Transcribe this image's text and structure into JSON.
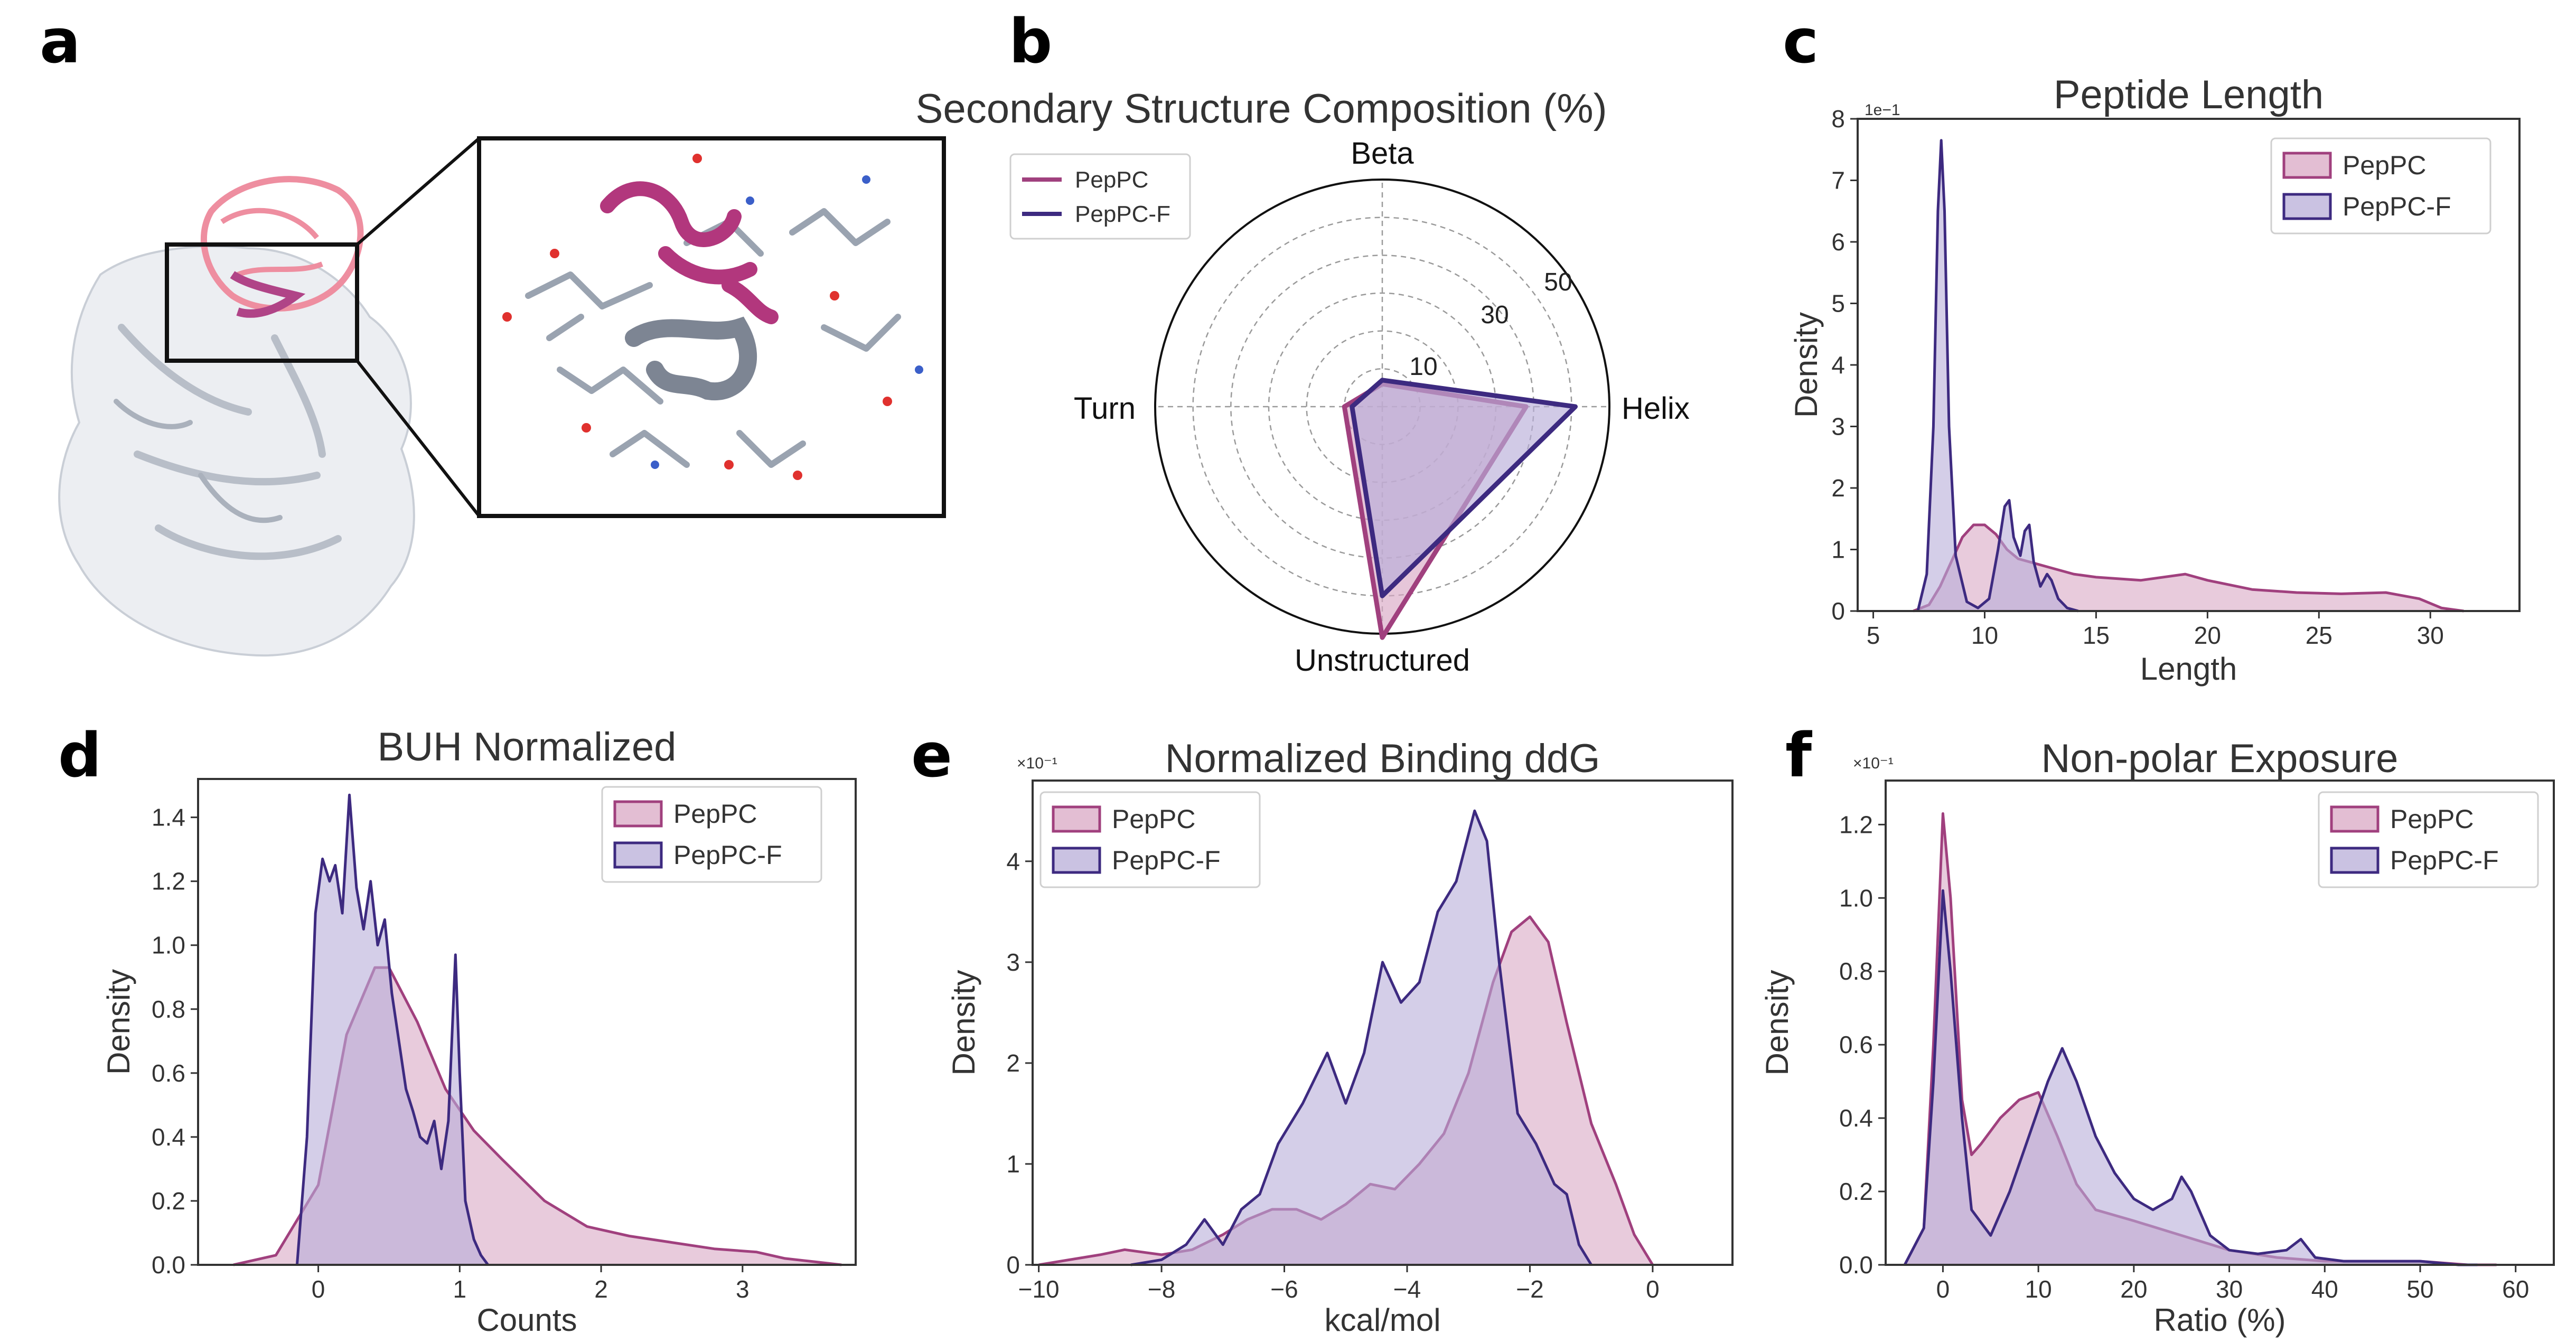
{
  "colors": {
    "pep": "#a0407e",
    "pepFill": "#d9a8c4",
    "pepf": "#3d2a80",
    "pepfFill": "#b8aed8",
    "axis": "#333333"
  },
  "panels": {
    "a": "a",
    "b": "b",
    "c": "c",
    "d": "d",
    "e": "e",
    "f": "f"
  },
  "legend": {
    "pep": "PepPC",
    "pepf": "PepPC-F"
  },
  "chart_data": [
    {
      "id": "b",
      "type": "radar",
      "title": "Secondary Structure Composition (%)",
      "axes": [
        "Helix",
        "Beta",
        "Turn",
        "Unstructured"
      ],
      "rticks": [
        10,
        30,
        50
      ],
      "rmax": 60,
      "grid_rings": [
        10,
        20,
        30,
        40,
        50,
        60
      ],
      "series": [
        {
          "name": "PepPC",
          "values": [
            38,
            6,
            10,
            61
          ]
        },
        {
          "name": "PepPC-F",
          "values": [
            51,
            7,
            8,
            50
          ]
        }
      ]
    },
    {
      "id": "c",
      "type": "area",
      "title": "Peptide Length",
      "xlabel": "Length",
      "ylabel": "Density",
      "xlim": [
        4.3,
        34
      ],
      "ylim": [
        0,
        8
      ],
      "multiplier": "1e−1",
      "xticks": [
        5,
        10,
        15,
        20,
        25,
        30
      ],
      "yticks": [
        0,
        1,
        2,
        3,
        4,
        5,
        6,
        7,
        8
      ],
      "series": [
        {
          "name": "PepPC",
          "x": [
            6.8,
            7.5,
            8.0,
            8.5,
            9.0,
            9.5,
            10.0,
            10.5,
            11.0,
            11.5,
            12.0,
            13.0,
            14.0,
            15.0,
            17.0,
            19.0,
            20.0,
            22.0,
            24.0,
            26.0,
            28.0,
            29.5,
            30.5,
            31.5
          ],
          "y": [
            0,
            0.1,
            0.4,
            0.8,
            1.2,
            1.4,
            1.4,
            1.25,
            1.0,
            0.85,
            0.8,
            0.7,
            0.6,
            0.55,
            0.5,
            0.6,
            0.5,
            0.35,
            0.3,
            0.28,
            0.3,
            0.2,
            0.05,
            0
          ]
        },
        {
          "name": "PepPC-F",
          "x": [
            7.0,
            7.4,
            7.7,
            7.9,
            8.05,
            8.2,
            8.4,
            8.7,
            9.2,
            9.7,
            10.2,
            10.6,
            10.9,
            11.1,
            11.3,
            11.6,
            11.8,
            12.0,
            12.2,
            12.5,
            12.8,
            13.0,
            13.3,
            13.7,
            14.2
          ],
          "y": [
            0,
            0.6,
            3.0,
            6.5,
            7.65,
            6.5,
            3.0,
            0.9,
            0.15,
            0.05,
            0.2,
            1.0,
            1.7,
            1.8,
            1.2,
            0.9,
            1.3,
            1.4,
            0.8,
            0.4,
            0.6,
            0.5,
            0.2,
            0.05,
            0
          ]
        }
      ]
    },
    {
      "id": "d",
      "type": "area",
      "title": "BUH Normalized",
      "xlabel": "Counts",
      "ylabel": "Density",
      "xlim": [
        -0.85,
        3.8
      ],
      "ylim": [
        0,
        1.52
      ],
      "xticks": [
        0,
        1,
        2,
        3
      ],
      "yticks": [
        0.0,
        0.2,
        0.4,
        0.6,
        0.8,
        1.0,
        1.2,
        1.4
      ],
      "series": [
        {
          "name": "PepPC",
          "x": [
            -0.6,
            -0.3,
            0,
            0.2,
            0.4,
            0.5,
            0.7,
            0.9,
            1.1,
            1.3,
            1.6,
            1.9,
            2.2,
            2.5,
            2.8,
            3.1,
            3.3,
            3.5,
            3.7
          ],
          "y": [
            0,
            0.03,
            0.25,
            0.72,
            0.93,
            0.93,
            0.76,
            0.55,
            0.42,
            0.33,
            0.2,
            0.12,
            0.09,
            0.07,
            0.05,
            0.04,
            0.02,
            0.01,
            0
          ]
        },
        {
          "name": "PepPC-F",
          "x": [
            -0.15,
            -0.08,
            -0.02,
            0.03,
            0.08,
            0.12,
            0.17,
            0.22,
            0.27,
            0.32,
            0.37,
            0.42,
            0.47,
            0.52,
            0.57,
            0.62,
            0.67,
            0.72,
            0.77,
            0.82,
            0.87,
            0.92,
            0.97,
            1.0,
            1.04,
            1.1,
            1.15,
            1.2
          ],
          "y": [
            0,
            0.4,
            1.1,
            1.27,
            1.2,
            1.25,
            1.1,
            1.47,
            1.18,
            1.05,
            1.2,
            1.0,
            1.08,
            0.85,
            0.7,
            0.55,
            0.48,
            0.4,
            0.38,
            0.45,
            0.3,
            0.45,
            0.97,
            0.6,
            0.2,
            0.08,
            0.03,
            0
          ]
        }
      ]
    },
    {
      "id": "e",
      "type": "area",
      "title": "Normalized Binding ddG",
      "xlabel": "kcal/mol",
      "ylabel": "Density",
      "xlim": [
        -10.1,
        1.3
      ],
      "ylim": [
        0,
        4.8
      ],
      "multiplier": "×10⁻¹",
      "xticks": [
        -10,
        -8,
        -6,
        -4,
        -2,
        0
      ],
      "yticks": [
        0,
        1,
        2,
        3,
        4
      ],
      "series": [
        {
          "name": "PepPC",
          "x": [
            -10,
            -9.5,
            -9,
            -8.6,
            -8,
            -7.5,
            -7,
            -6.6,
            -6.2,
            -5.8,
            -5.4,
            -5,
            -4.6,
            -4.2,
            -3.8,
            -3.4,
            -3,
            -2.6,
            -2.3,
            -2.0,
            -1.7,
            -1.4,
            -1.0,
            -0.6,
            -0.3,
            0
          ],
          "y": [
            0,
            0.05,
            0.1,
            0.15,
            0.1,
            0.15,
            0.3,
            0.45,
            0.55,
            0.55,
            0.45,
            0.6,
            0.8,
            0.75,
            1.0,
            1.3,
            1.9,
            2.8,
            3.3,
            3.45,
            3.2,
            2.4,
            1.4,
            0.8,
            0.3,
            0
          ]
        },
        {
          "name": "PepPC-F",
          "x": [
            -8.5,
            -8,
            -7.6,
            -7.3,
            -7.0,
            -6.7,
            -6.4,
            -6.1,
            -5.7,
            -5.3,
            -5.0,
            -4.7,
            -4.4,
            -4.1,
            -3.8,
            -3.5,
            -3.2,
            -2.9,
            -2.7,
            -2.5,
            -2.2,
            -1.9,
            -1.6,
            -1.4,
            -1.2,
            -1.0
          ],
          "y": [
            0,
            0.05,
            0.2,
            0.45,
            0.2,
            0.55,
            0.7,
            1.2,
            1.6,
            2.1,
            1.6,
            2.1,
            3.0,
            2.6,
            2.8,
            3.5,
            3.8,
            4.5,
            4.2,
            3.0,
            1.5,
            1.2,
            0.8,
            0.7,
            0.2,
            0
          ]
        }
      ]
    },
    {
      "id": "f",
      "type": "area",
      "title": "Non-polar Exposure",
      "xlabel": "Ratio (%)",
      "ylabel": "Density",
      "xlim": [
        -6,
        64
      ],
      "ylim": [
        0,
        1.32
      ],
      "multiplier": "×10⁻¹",
      "xticks": [
        0,
        10,
        20,
        30,
        40,
        50,
        60
      ],
      "yticks": [
        0.0,
        0.2,
        0.4,
        0.6,
        0.8,
        1.0,
        1.2
      ],
      "series": [
        {
          "name": "PepPC",
          "x": [
            -4,
            -2,
            -1,
            0,
            0.8,
            2,
            3,
            4,
            6,
            8,
            10,
            12,
            14,
            16,
            20,
            25,
            30,
            35,
            40,
            45,
            50,
            55,
            58
          ],
          "y": [
            0,
            0.1,
            0.6,
            1.23,
            1.0,
            0.45,
            0.3,
            0.33,
            0.4,
            0.45,
            0.47,
            0.35,
            0.22,
            0.15,
            0.12,
            0.08,
            0.04,
            0.02,
            0.01,
            0.01,
            0.01,
            0,
            0
          ]
        },
        {
          "name": "PepPC-F",
          "x": [
            -4,
            -2,
            -1,
            0,
            0.8,
            2,
            3,
            5,
            7,
            9,
            11,
            12.5,
            14,
            16,
            18,
            20,
            22,
            24,
            25,
            26,
            28,
            30,
            33,
            36,
            37.5,
            39,
            42,
            46,
            50,
            54,
            56
          ],
          "y": [
            0,
            0.1,
            0.5,
            1.02,
            0.8,
            0.4,
            0.15,
            0.08,
            0.2,
            0.35,
            0.5,
            0.59,
            0.5,
            0.35,
            0.25,
            0.18,
            0.15,
            0.18,
            0.24,
            0.2,
            0.08,
            0.04,
            0.03,
            0.04,
            0.07,
            0.02,
            0.01,
            0.01,
            0.01,
            0,
            0
          ]
        }
      ]
    }
  ]
}
